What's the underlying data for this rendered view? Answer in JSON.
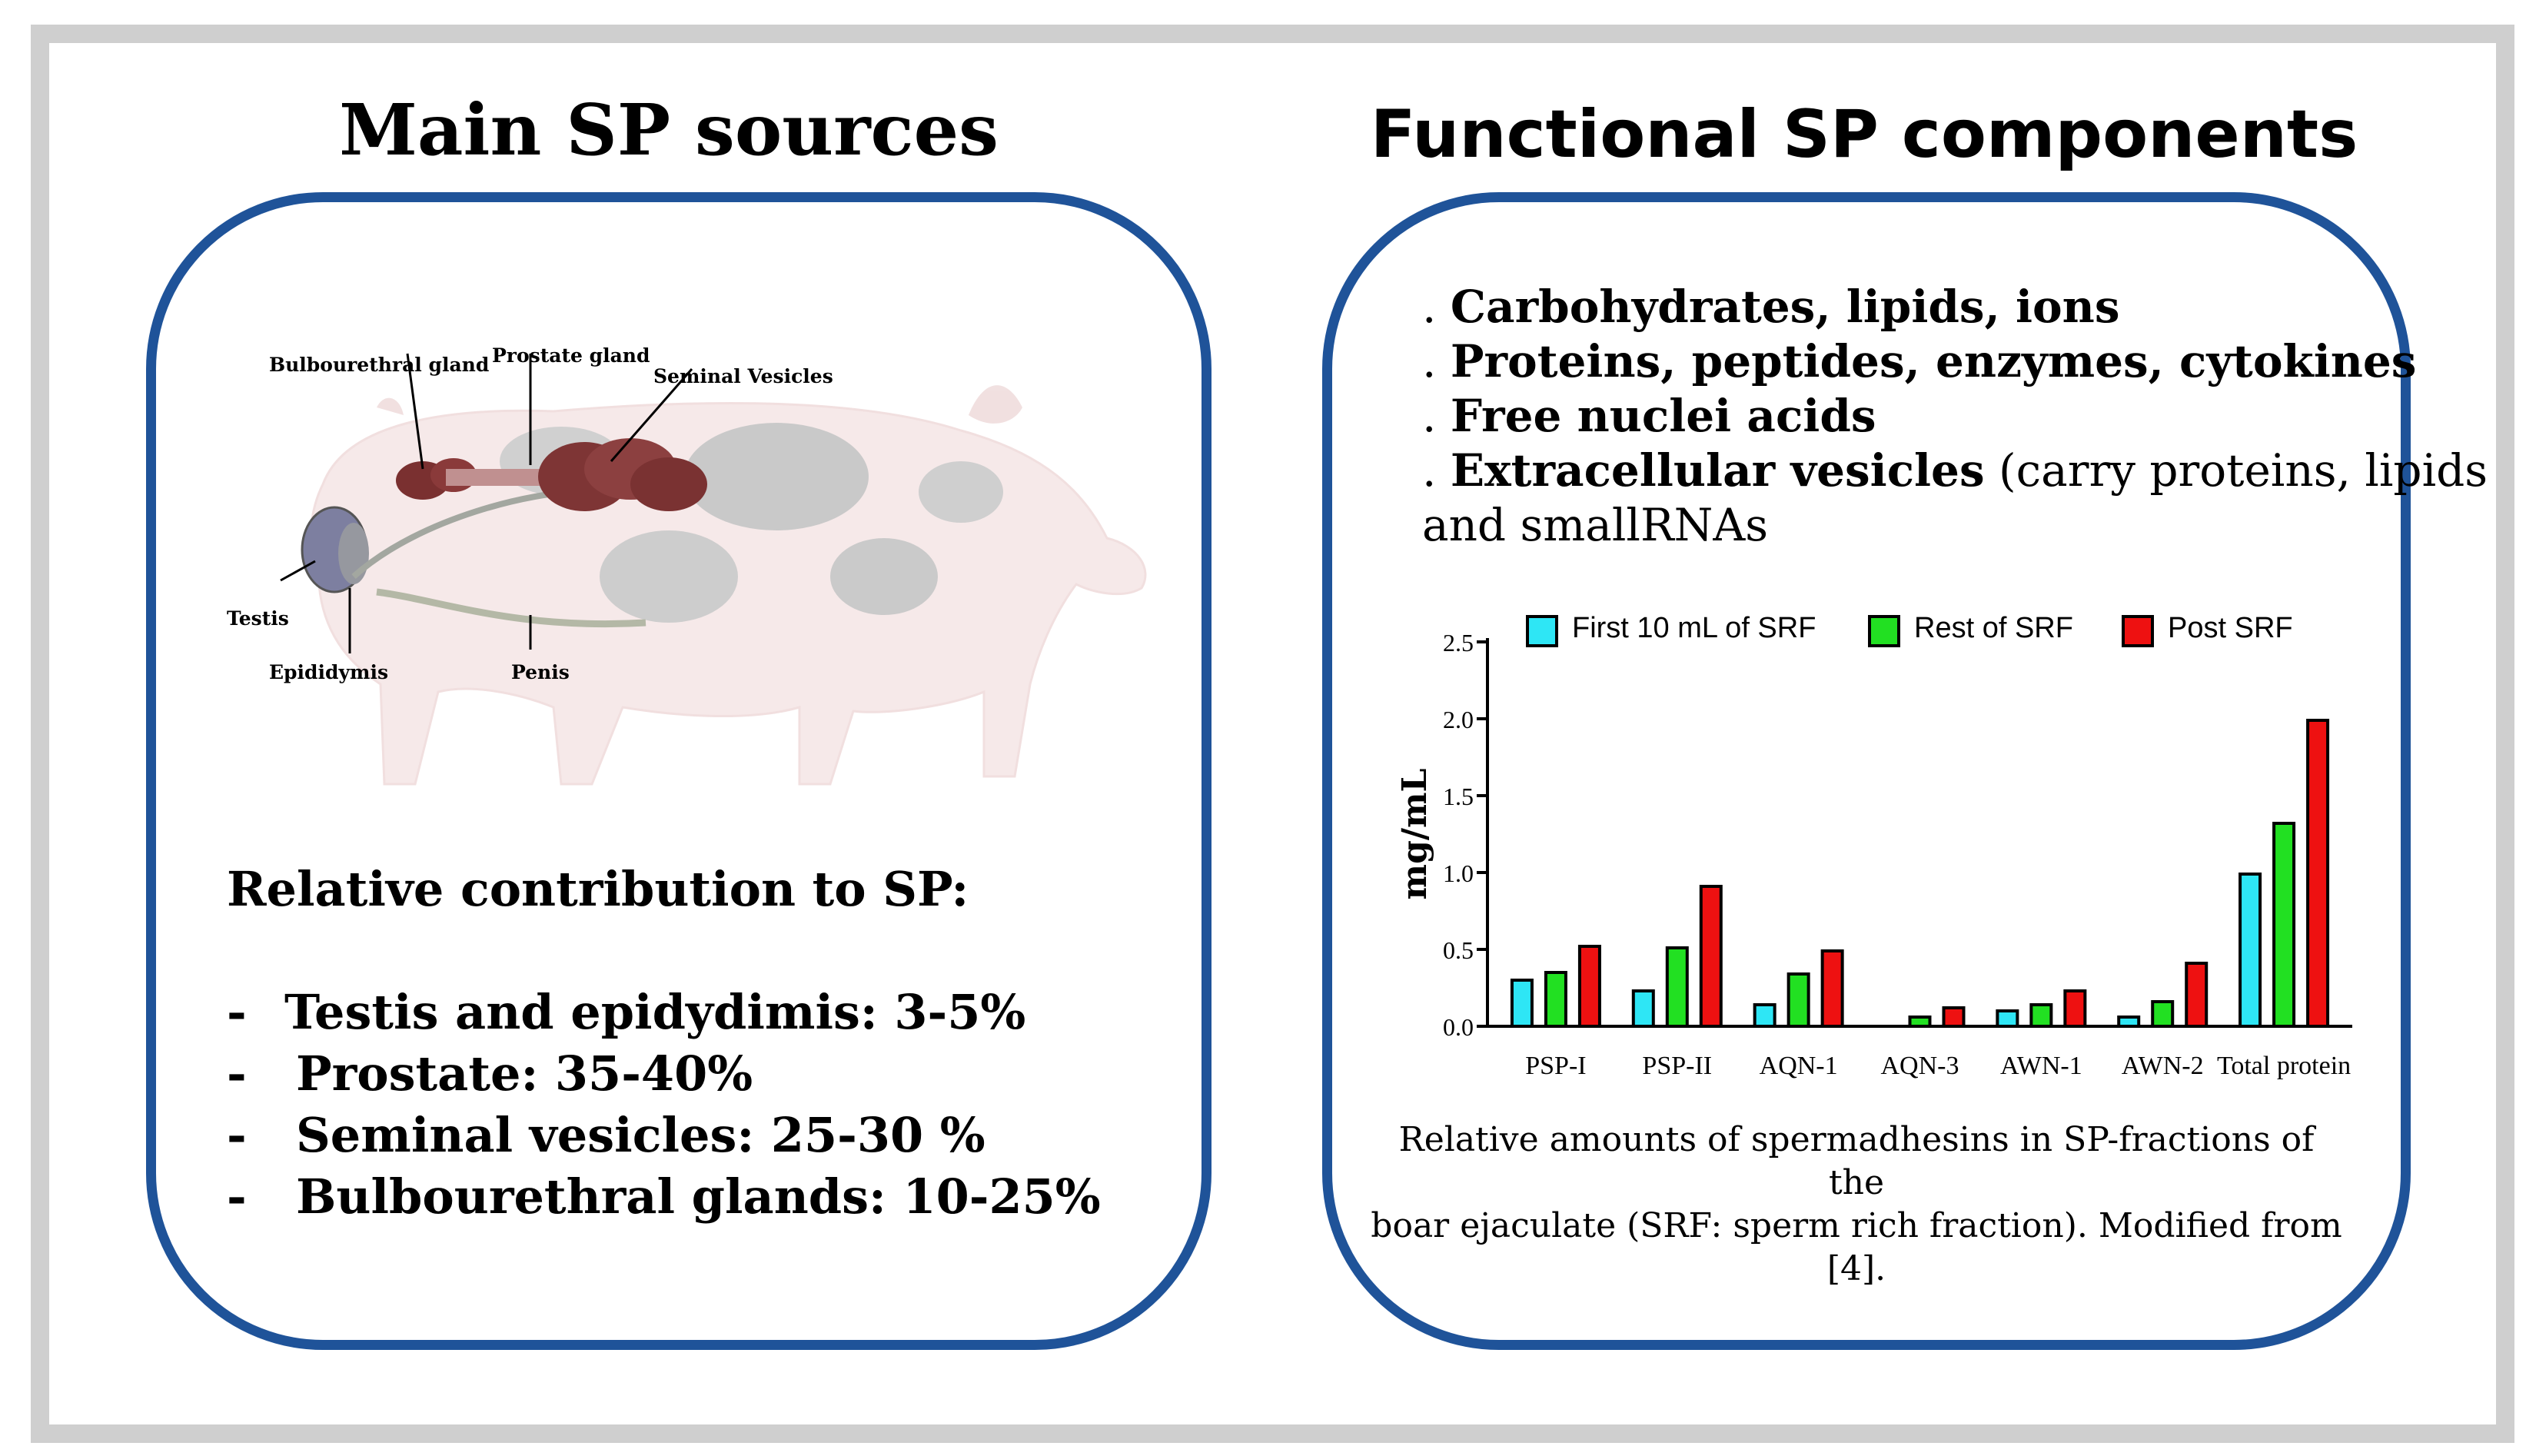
{
  "left": {
    "title": "Main SP sources",
    "labels": {
      "bulbourethral": "Bulbourethral gland",
      "prostate": "Prostate gland",
      "seminal": "Seminal Vesicles",
      "testis": "Testis",
      "epididymis": "Epididymis",
      "penis": "Penis"
    },
    "contribution_heading": "Relative contribution to SP:",
    "contributions": [
      {
        "dash": "-",
        "text": "Testis and epidydimis: 3-5%"
      },
      {
        "dash": "-",
        "text": "Prostate: 35-40%"
      },
      {
        "dash": "-",
        "text": "Seminal vesicles: 25-30 %"
      },
      {
        "dash": "-",
        "text": "Bulbourethral glands: 10-25%"
      }
    ]
  },
  "right": {
    "title": "Functional SP components",
    "components": [
      {
        "prefix": ". ",
        "bold": "Carbohydrates, lipids, ions",
        "rest": ""
      },
      {
        "prefix": ". ",
        "bold": "Proteins, peptides, enzymes, cytokines",
        "rest": ""
      },
      {
        "prefix": ". ",
        "bold": "Free nuclei acids",
        "rest": ""
      },
      {
        "prefix": ". ",
        "bold": "Extracellular vesicles",
        "rest": " (carry proteins, lipids"
      }
    ],
    "components_continuation": "and smallRNAs",
    "caption_line1": "Relative amounts of spermadhesins in SP-fractions  of the",
    "caption_line2": "boar ejaculate (SRF: sperm rich fraction). Modified from [4]."
  },
  "colors": {
    "panel_border": "#1f5399",
    "frame": "#cfcfcf",
    "cyan": "#2ee6f5",
    "green": "#22e022",
    "red": "#ee1111"
  },
  "chart_data": {
    "type": "bar",
    "ylabel": "mg/mL",
    "ylim": [
      0,
      2.5
    ],
    "yticks": [
      "0.0",
      "0.5",
      "1.0",
      "1.5",
      "2.0",
      "2.5"
    ],
    "categories": [
      "PSP-I",
      "PSP-II",
      "AQN-1",
      "AQN-3",
      "AWN-1",
      "AWN-2",
      "Total protein"
    ],
    "series": [
      {
        "name": "First 10 mL of SRF",
        "color": "#2ee6f5",
        "values": [
          0.3,
          0.23,
          0.14,
          0.0,
          0.1,
          0.06,
          0.99
        ]
      },
      {
        "name": "Rest of SRF",
        "color": "#22e022",
        "values": [
          0.35,
          0.51,
          0.34,
          0.06,
          0.14,
          0.16,
          1.32
        ]
      },
      {
        "name": "Post SRF",
        "color": "#ee1111",
        "values": [
          0.52,
          0.91,
          0.49,
          0.12,
          0.23,
          0.41,
          1.99
        ]
      }
    ],
    "legend": "top"
  }
}
